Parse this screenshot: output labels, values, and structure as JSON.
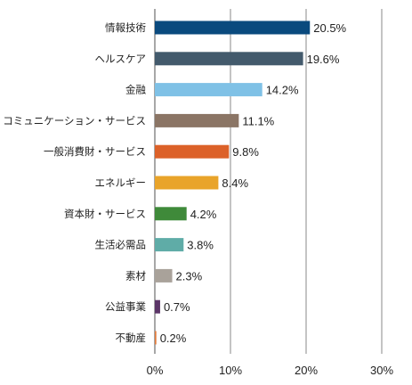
{
  "chart_data": {
    "type": "bar",
    "orientation": "horizontal",
    "categories": [
      "情報技術",
      "ヘルスケア",
      "金融",
      "コミュニケーション・サービス",
      "一般消費財・サービス",
      "エネルギー",
      "資本財・サービス",
      "生活必需品",
      "素材",
      "公益事業",
      "不動産"
    ],
    "values": [
      20.5,
      19.6,
      14.2,
      11.1,
      9.8,
      8.4,
      4.2,
      3.8,
      2.3,
      0.7,
      0.2
    ],
    "value_labels": [
      "20.5%",
      "19.6%",
      "14.2%",
      "11.1%",
      "9.8%",
      "8.4%",
      "4.2%",
      "3.8%",
      "2.3%",
      "0.7%",
      "0.2%"
    ],
    "colors": [
      "#0a4a7e",
      "#435a6c",
      "#7fc1e6",
      "#8b7565",
      "#dc6129",
      "#e9a42a",
      "#3f8a3a",
      "#5faca7",
      "#a9a29a",
      "#5c3668",
      "#e07a3c"
    ],
    "xlim": [
      0,
      30
    ],
    "xticks": [
      0,
      10,
      20,
      30
    ],
    "xtick_labels": [
      "0%",
      "10%",
      "20%",
      "30%"
    ],
    "grid": true,
    "title": "",
    "xlabel": "",
    "ylabel": ""
  }
}
